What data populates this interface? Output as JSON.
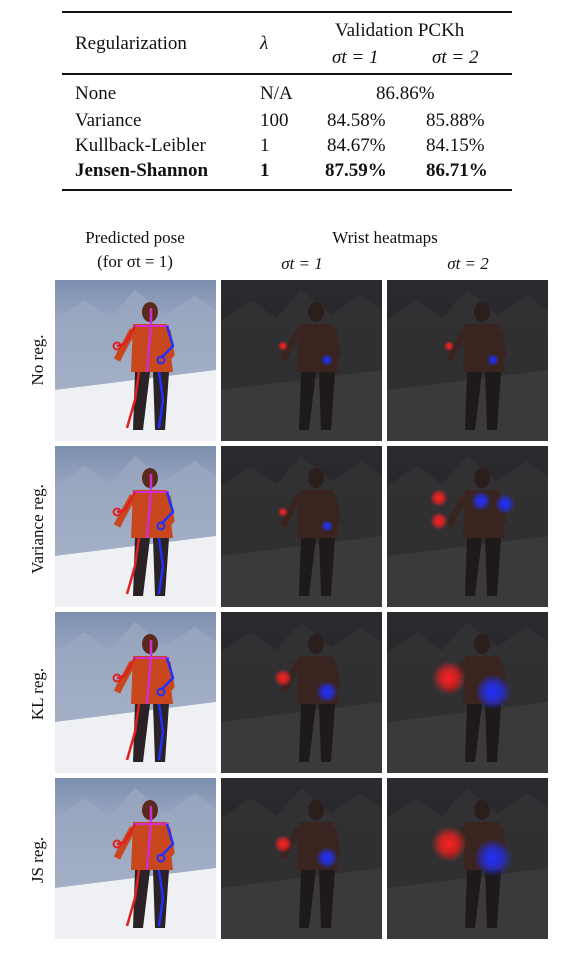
{
  "table": {
    "headers": {
      "regularization": "Regularization",
      "lambda": "λ",
      "validation": "Validation PCKh",
      "sigma1": "σt = 1",
      "sigma2": "σt = 2"
    },
    "rows": [
      {
        "name": "None",
        "lambda": "N/A",
        "merged": "86.86%",
        "s1": "",
        "s2": "",
        "bold": false
      },
      {
        "name": "Variance",
        "lambda": "100",
        "merged": "",
        "s1": "84.58%",
        "s2": "85.88%",
        "bold": false
      },
      {
        "name": "Kullback-Leibler",
        "lambda": "1",
        "merged": "",
        "s1": "84.67%",
        "s2": "84.15%",
        "bold": false
      },
      {
        "name": "Jensen-Shannon",
        "lambda": "1",
        "merged": "",
        "s1": "87.59%",
        "s2": "86.71%",
        "bold": true
      }
    ]
  },
  "figure": {
    "col_pose_line1": "Predicted pose",
    "col_pose_line2": "(for σt = 1)",
    "col_heat": "Wrist heatmaps",
    "col_heat_s1": "σt = 1",
    "col_heat_s2": "σt = 2",
    "row_labels": [
      "No reg.",
      "Variance reg.",
      "KL reg.",
      "JS reg."
    ]
  },
  "colors": {
    "left_wrist_heat": "#ff2020",
    "right_wrist_heat": "#2030ff",
    "limb_left": "#e02020",
    "limb_right": "#2030ff",
    "torso": "#d030d0"
  }
}
